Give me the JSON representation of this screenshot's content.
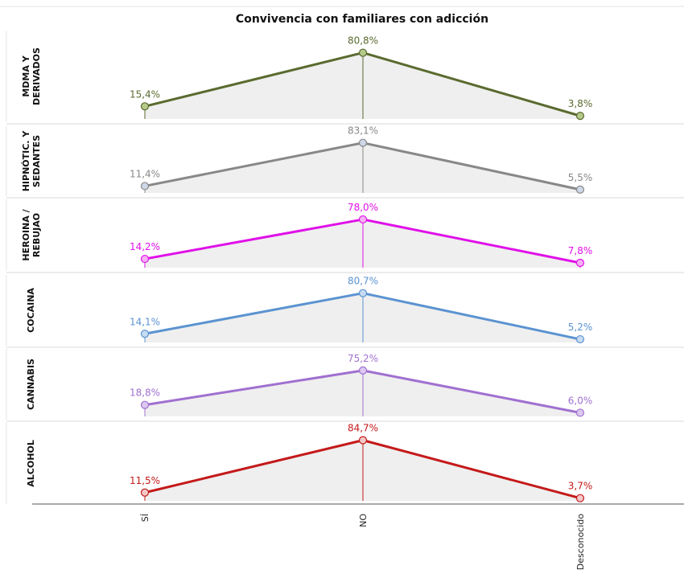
{
  "chart_data": {
    "type": "line",
    "title": "Convivencia con familiares con adicción",
    "categories": [
      "SÍ",
      "NO",
      "Desconocido"
    ],
    "ylim": [
      0,
      100
    ],
    "grid": false,
    "legend": "none",
    "series": [
      {
        "name": "MDMA Y DERIVADOS",
        "values": [
          15.4,
          80.8,
          3.8
        ],
        "labels": [
          "15,4%",
          "80,8%",
          "3,8%"
        ],
        "color": "#5a6b2f",
        "marker_fill": "#b5c98a"
      },
      {
        "name": "HIPNÓTIC. Y SEDANTES",
        "values": [
          11.4,
          83.1,
          5.5
        ],
        "labels": [
          "11,4%",
          "83,1%",
          "5,5%"
        ],
        "color": "#888888",
        "marker_fill": "#cfd8e8"
      },
      {
        "name": "HEROINA / REBUJAO",
        "values": [
          14.2,
          78.0,
          7.8
        ],
        "labels": [
          "14,2%",
          "78,0%",
          "7,8%"
        ],
        "color": "#e010e8",
        "marker_fill": "#f5b0f5"
      },
      {
        "name": "COCAINA",
        "values": [
          14.1,
          80.7,
          5.2
        ],
        "labels": [
          "14,1%",
          "80,7%",
          "5,2%"
        ],
        "color": "#5b93d1",
        "marker_fill": "#c8dcf2"
      },
      {
        "name": "CANNABIS",
        "values": [
          18.8,
          75.2,
          6.0
        ],
        "labels": [
          "18,8%",
          "75,2%",
          "6,0%"
        ],
        "color": "#a070d0",
        "marker_fill": "#dcc8f0"
      },
      {
        "name": "ALCOHOL",
        "values": [
          11.5,
          84.7,
          3.7
        ],
        "labels": [
          "11,5%",
          "84,7%",
          "3,7%"
        ],
        "color": "#c41a1a",
        "marker_fill": "#f4c8c8"
      }
    ]
  }
}
